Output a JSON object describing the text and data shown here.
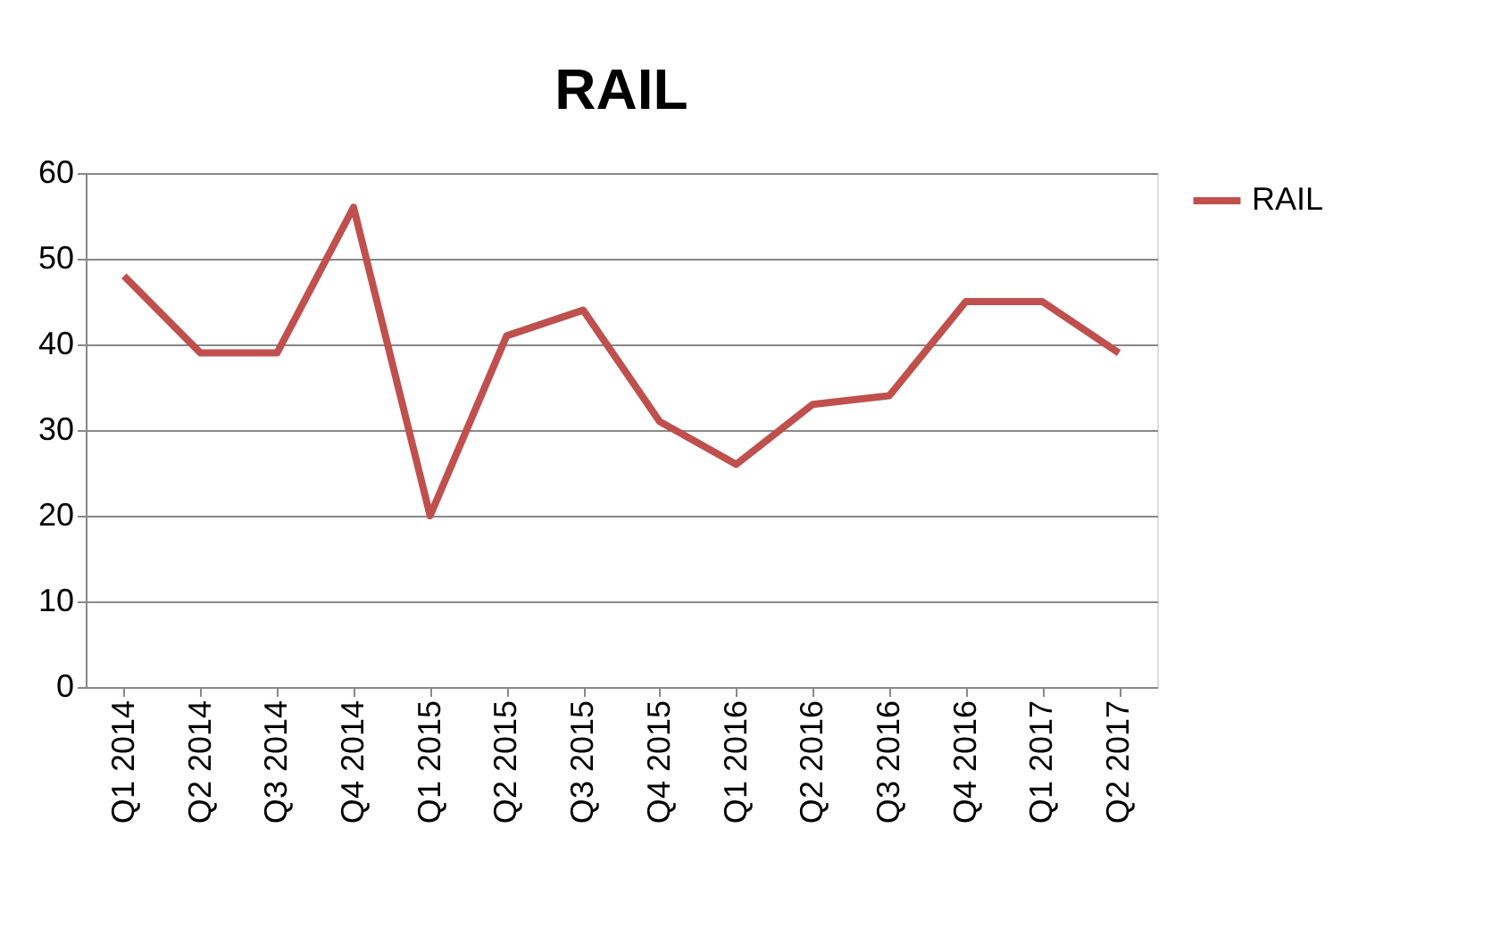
{
  "chart_data": {
    "type": "line",
    "title": "RAIL",
    "categories": [
      "Q1 2014",
      "Q2 2014",
      "Q3 2014",
      "Q4 2014",
      "Q1 2015",
      "Q2 2015",
      "Q3 2015",
      "Q4 2015",
      "Q1 2016",
      "Q2 2016",
      "Q3 2016",
      "Q4 2016",
      "Q1 2017",
      "Q2 2017"
    ],
    "series": [
      {
        "name": "RAIL",
        "color": "#c0504d",
        "values": [
          48,
          39,
          39,
          56,
          20,
          41,
          44,
          31,
          26,
          33,
          34,
          45,
          45,
          39
        ]
      }
    ],
    "ylim": [
      0,
      60
    ],
    "yticks": [
      0,
      10,
      20,
      30,
      40,
      50,
      60
    ],
    "grid": "y",
    "legend": "right",
    "marker": "none",
    "line_style": "solid"
  }
}
